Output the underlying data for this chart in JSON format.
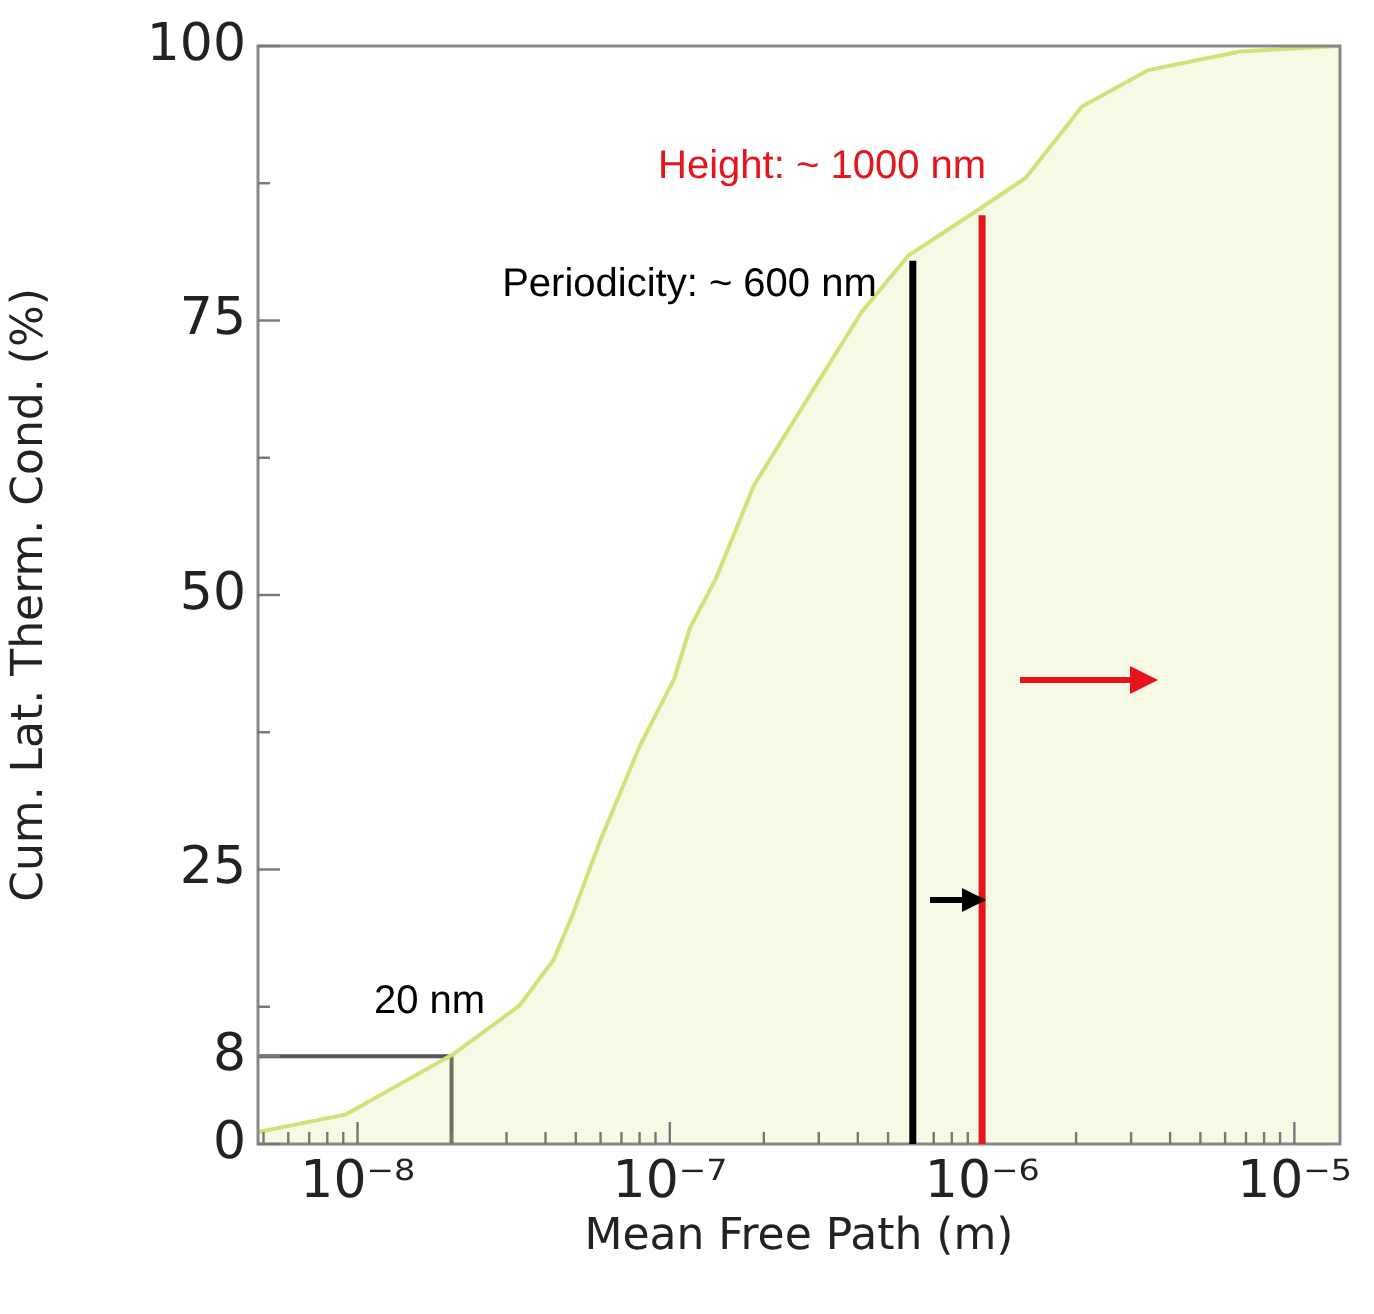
{
  "chart_data": {
    "type": "area",
    "xlabel": "Mean Free Path (m)",
    "ylabel": "Cum. Lat. Therm. Cond. (%)",
    "log": "x",
    "xlim": [
      4.8e-09,
      1.4e-05
    ],
    "xticks": [
      {
        "value": 5e-09,
        "label": null
      },
      {
        "value": 6e-09,
        "label": null
      },
      {
        "value": 7e-09,
        "label": null
      },
      {
        "value": 8e-09,
        "label": null
      },
      {
        "value": 9e-09,
        "label": null
      },
      {
        "value": 1e-08,
        "label": "10⁻⁸"
      },
      {
        "value": 2e-08,
        "label": null
      },
      {
        "value": 3e-08,
        "label": null
      },
      {
        "value": 4e-08,
        "label": null
      },
      {
        "value": 5e-08,
        "label": null
      },
      {
        "value": 6e-08,
        "label": null
      },
      {
        "value": 7e-08,
        "label": null
      },
      {
        "value": 8e-08,
        "label": null
      },
      {
        "value": 9e-08,
        "label": null
      },
      {
        "value": 1e-07,
        "label": "10⁻⁷"
      },
      {
        "value": 2e-07,
        "label": null
      },
      {
        "value": 3e-07,
        "label": null
      },
      {
        "value": 4e-07,
        "label": null
      },
      {
        "value": 5e-07,
        "label": null
      },
      {
        "value": 6e-07,
        "label": null
      },
      {
        "value": 7e-07,
        "label": null
      },
      {
        "value": 8e-07,
        "label": null
      },
      {
        "value": 9e-07,
        "label": null
      },
      {
        "value": 1e-06,
        "label": "10⁻⁶"
      },
      {
        "value": 2e-06,
        "label": null
      },
      {
        "value": 3e-06,
        "label": null
      },
      {
        "value": 4e-06,
        "label": null
      },
      {
        "value": 5e-06,
        "label": null
      },
      {
        "value": 6e-06,
        "label": null
      },
      {
        "value": 7e-06,
        "label": null
      },
      {
        "value": 8e-06,
        "label": null
      },
      {
        "value": 9e-06,
        "label": null
      },
      {
        "value": 1e-05,
        "label": "10⁻⁵"
      }
    ],
    "ylim": [
      0,
      100
    ],
    "yticks": [
      0,
      8,
      {
        "value": 12.5,
        "label": null
      },
      25,
      {
        "value": 37.5,
        "label": null
      },
      50,
      {
        "value": 62.5,
        "label": null
      },
      75,
      {
        "value": 87.5,
        "label": null
      },
      100
    ],
    "series": [
      {
        "color": "#d4e07a",
        "x": [
          4.8e-09,
          9.2e-09,
          2.03e-08,
          3.3e-08,
          4.25e-08,
          4.9e-08,
          6e-08,
          8e-08,
          1.03e-07,
          1.16e-07,
          1.4e-07,
          1.86e-07,
          2.85e-07,
          4.12e-07,
          5.8e-07,
          9.86e-07,
          1.38e-06,
          2.09e-06,
          3.4e-06,
          6.7e-06,
          1.4e-05
        ],
        "values": [
          1.1,
          2.7,
          8.2,
          12.6,
          16.8,
          21,
          27.7,
          36.2,
          42.3,
          47,
          51.4,
          60,
          68.5,
          75.8,
          80.9,
          85.2,
          88,
          94.5,
          97.8,
          99.5,
          100
        ]
      },
      {
        "type": "line",
        "color": "#555555",
        "x": [
          4.8e-09,
          2e-08,
          2e-08
        ],
        "values": [
          8,
          8,
          0
        ]
      }
    ],
    "ref_lines": [
      {
        "axis": "x",
        "value": 6e-07,
        "label": "Periodicity: ~ 600 nm",
        "color": "#000000"
      },
      {
        "axis": "x",
        "value": 1e-06,
        "label": "Height: ~ 1000 nm",
        "color": "#e8141c"
      }
    ],
    "annotations": [
      {
        "text": "20 nm",
        "x": 2e-08,
        "y": 8
      }
    ]
  }
}
